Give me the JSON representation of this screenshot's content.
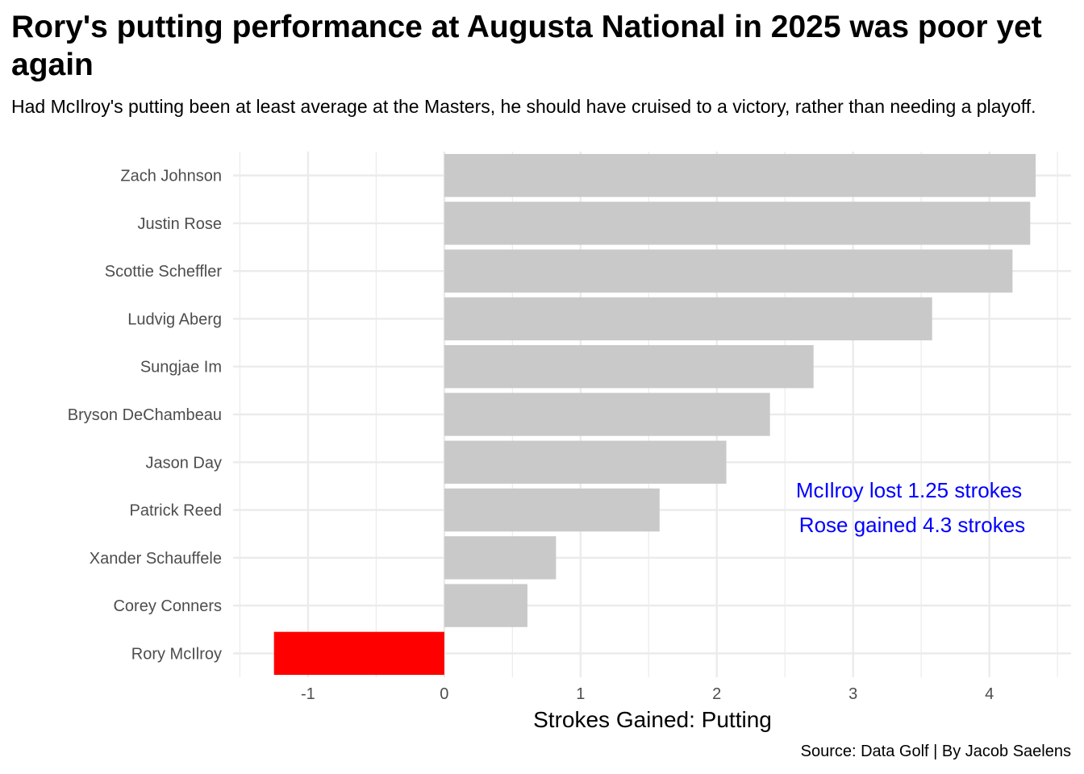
{
  "title": "Rory's putting performance at Augusta National in 2025 was poor yet again",
  "subtitle": "Had McIlroy's putting been at least average at the Masters, he should have cruised to a victory, rather than needing a playoff.",
  "caption": "Source: Data Golf | By Jacob Saelens",
  "colors": {
    "highlight": "#ff0000",
    "default": "#c9c9c9",
    "annotation": "#0000ff",
    "grid": "#ebebeb"
  },
  "chart_data": {
    "type": "bar",
    "orientation": "horizontal",
    "categories": [
      "Zach Johnson",
      "Justin Rose",
      "Scottie Scheffler",
      "Ludvig Aberg",
      "Sungjae Im",
      "Bryson DeChambeau",
      "Jason Day",
      "Patrick Reed",
      "Xander Schauffele",
      "Corey Conners",
      "Rory McIlroy"
    ],
    "values": [
      4.34,
      4.3,
      4.17,
      3.58,
      2.71,
      2.39,
      2.07,
      1.58,
      0.82,
      0.61,
      -1.25
    ],
    "highlight": "Rory McIlroy",
    "xlabel": "Strokes Gained: Putting",
    "ylabel": "",
    "xlim": [
      -1.55,
      4.6
    ],
    "xticks": [
      -1,
      0,
      1,
      2,
      3,
      4
    ],
    "xtick_labels": [
      "-1",
      "0",
      "1",
      "2",
      "3",
      "4"
    ],
    "grid": true,
    "annotations": [
      "McIlroy lost 1.25 strokes",
      "Rose gained 4.3 strokes"
    ]
  }
}
